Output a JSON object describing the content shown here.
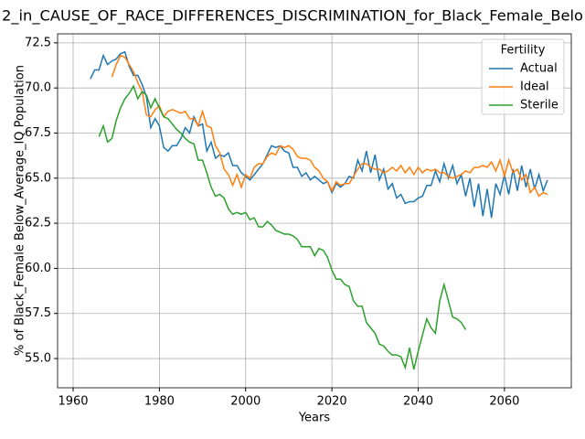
{
  "chart_data": {
    "type": "line",
    "title": "2_in_CAUSE_OF_RACE_DIFFERENCES_DISCRIMINATION_for_Black_Female_Belo",
    "x_label": "Years",
    "y_label": "% of Black_Female Below_Average_IQ Population",
    "legend_title": "Fertility",
    "legend": "upper right",
    "grid": true,
    "xlim": [
      1956.4,
      2075.5
    ],
    "ylim": [
      53.38,
      73.0
    ],
    "xticks": [
      1960,
      1980,
      2000,
      2020,
      2040,
      2060
    ],
    "yticks": [
      {
        "value": 55,
        "label": "55.0"
      },
      57.5,
      {
        "value": 60,
        "label": "60.0"
      },
      62.5,
      {
        "value": 65,
        "label": "65.0"
      },
      67.5,
      {
        "value": 70,
        "label": "70.0"
      },
      72.5
    ],
    "x": [
      1964,
      1965,
      1966,
      1967,
      1968,
      1969,
      1970,
      1971,
      1972,
      1973,
      1974,
      1975,
      1976,
      1977,
      1978,
      1979,
      1980,
      1981,
      1982,
      1983,
      1984,
      1985,
      1986,
      1987,
      1988,
      1989,
      1990,
      1991,
      1992,
      1993,
      1994,
      1995,
      1996,
      1997,
      1998,
      1999,
      2000,
      2001,
      2002,
      2003,
      2004,
      2005,
      2006,
      2007,
      2008,
      2009,
      2010,
      2011,
      2012,
      2013,
      2014,
      2015,
      2016,
      2017,
      2018,
      2019,
      2020,
      2021,
      2022,
      2023,
      2024,
      2025,
      2026,
      2027,
      2028,
      2029,
      2030,
      2031,
      2032,
      2033,
      2034,
      2035,
      2036,
      2037,
      2038,
      2039,
      2040,
      2041,
      2042,
      2043,
      2044,
      2045,
      2046,
      2047,
      2048,
      2049,
      2050,
      2051,
      2052,
      2053,
      2054,
      2055,
      2056,
      2057,
      2058,
      2059,
      2060,
      2061,
      2062,
      2063,
      2064,
      2065,
      2066,
      2067,
      2068,
      2069,
      2070
    ],
    "series": [
      {
        "name": "Actual",
        "color": "#1f77b4",
        "values": [
          70.5,
          71.0,
          71.0,
          71.8,
          71.3,
          71.5,
          71.6,
          71.9,
          72.0,
          71.2,
          70.7,
          70.7,
          70.2,
          69.5,
          67.8,
          68.3,
          67.9,
          66.7,
          66.5,
          66.8,
          66.8,
          67.2,
          67.8,
          67.5,
          68.4,
          67.9,
          68.0,
          66.5,
          67.0,
          66.1,
          66.3,
          66.2,
          66.4,
          65.7,
          65.7,
          65.3,
          65.1,
          64.9,
          65.2,
          65.5,
          65.8,
          66.3,
          66.8,
          66.7,
          66.8,
          66.5,
          66.4,
          65.6,
          65.6,
          65.1,
          65.3,
          64.9,
          65.1,
          64.9,
          64.7,
          64.8,
          64.2,
          64.7,
          64.5,
          64.7,
          65.1,
          65.0,
          66.0,
          65.4,
          66.5,
          65.3,
          66.3,
          64.9,
          65.5,
          64.4,
          64.7,
          63.9,
          64.1,
          63.6,
          63.7,
          63.7,
          63.9,
          64.0,
          64.6,
          64.6,
          65.4,
          64.8,
          65.8,
          65.0,
          65.7,
          64.7,
          65.2,
          64.0,
          65.0,
          63.4,
          64.7,
          62.9,
          64.4,
          62.8,
          64.7,
          64.1,
          65.2,
          64.1,
          65.5,
          64.3,
          65.7,
          64.5,
          65.5,
          64.4,
          65.2,
          64.3,
          64.9
        ]
      },
      {
        "name": "Ideal",
        "color": "#ff7f0e",
        "values": [
          null,
          null,
          null,
          null,
          null,
          70.6,
          71.3,
          71.8,
          71.7,
          71.3,
          70.9,
          70.3,
          69.8,
          68.5,
          68.4,
          68.8,
          69.0,
          68.4,
          68.7,
          68.8,
          68.7,
          68.6,
          68.7,
          68.3,
          68.3,
          67.9,
          68.7,
          67.9,
          67.8,
          66.8,
          66.4,
          65.5,
          65.2,
          64.6,
          65.2,
          64.5,
          65.2,
          65.0,
          65.6,
          65.8,
          65.8,
          66.2,
          66.4,
          66.3,
          66.8,
          66.7,
          66.8,
          66.6,
          66.2,
          66.1,
          66.1,
          66.0,
          65.6,
          65.4,
          65.0,
          64.8,
          64.3,
          64.8,
          64.6,
          64.7,
          64.7,
          65.1,
          65.5,
          65.8,
          65.8,
          65.6,
          65.5,
          65.5,
          65.3,
          65.4,
          65.6,
          65.4,
          65.7,
          65.3,
          65.6,
          65.2,
          65.6,
          65.3,
          65.5,
          65.4,
          65.5,
          65.3,
          65.3,
          65.1,
          65.0,
          65.1,
          65.2,
          65.4,
          65.3,
          65.6,
          65.6,
          65.7,
          65.6,
          65.9,
          65.4,
          66.0,
          65.1,
          66.0,
          65.3,
          65.5,
          64.9,
          65.2,
          64.2,
          64.5,
          64.0,
          64.2,
          64.1
        ]
      },
      {
        "name": "Sterile",
        "color": "#2ca02c",
        "values": [
          null,
          null,
          67.3,
          67.9,
          67.0,
          67.2,
          68.2,
          68.9,
          69.4,
          69.7,
          70.1,
          69.4,
          69.8,
          69.6,
          68.9,
          69.4,
          68.9,
          68.4,
          68.3,
          68.0,
          67.7,
          67.5,
          67.2,
          67.0,
          66.9,
          66.0,
          66.0,
          65.3,
          64.5,
          64.0,
          64.1,
          63.9,
          63.3,
          63.0,
          63.1,
          63.0,
          63.1,
          62.7,
          62.8,
          62.3,
          62.3,
          62.6,
          62.4,
          62.1,
          62.0,
          61.9,
          61.9,
          61.8,
          61.6,
          61.2,
          61.2,
          61.2,
          60.7,
          61.1,
          61.0,
          60.6,
          59.9,
          59.4,
          59.4,
          59.1,
          59.0,
          58.2,
          57.9,
          57.9,
          57.0,
          56.7,
          56.4,
          55.8,
          55.7,
          55.4,
          55.2,
          55.2,
          55.1,
          54.5,
          55.6,
          54.4,
          55.4,
          56.3,
          57.2,
          56.7,
          56.4,
          58.2,
          59.1,
          58.2,
          57.3,
          57.2,
          57.0,
          56.6,
          null,
          null,
          null,
          null,
          null,
          null,
          null,
          null,
          null,
          null,
          null,
          null,
          null,
          null,
          null,
          null,
          null,
          null,
          null
        ]
      }
    ]
  }
}
